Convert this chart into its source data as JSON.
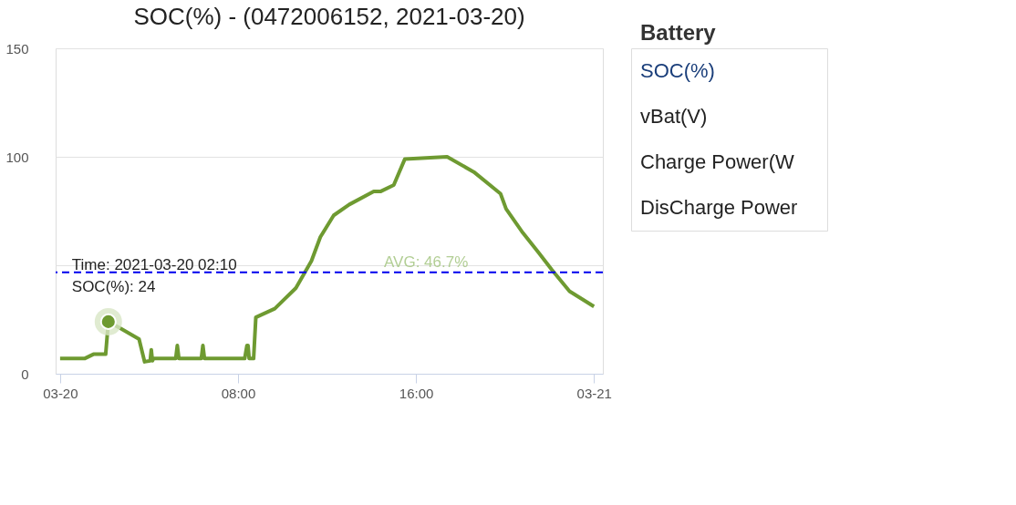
{
  "chart_data": [
    {
      "type": "line",
      "title": "SOC(%) - (0472006152, 2021-03-20)",
      "x": [
        0,
        1.1,
        1.5,
        2.05,
        2.17,
        2.7,
        3.55,
        3.8,
        4.05,
        4.1,
        4.15,
        4.2,
        5.2,
        5.27,
        5.34,
        6.35,
        6.42,
        6.49,
        8.3,
        8.4,
        8.45,
        8.5,
        8.7,
        8.8,
        9.65,
        10.6,
        11.3,
        11.7,
        12.3,
        13.0,
        14.1,
        14.4,
        15.0,
        15.5,
        17.4,
        18.6,
        19.8,
        20.05,
        20.8,
        21.5,
        22.1,
        22.9,
        24.0
      ],
      "series": [
        {
          "color": "#6e9a31",
          "values": [
            7,
            7,
            9,
            9,
            24,
            21,
            16,
            5.5,
            6,
            11,
            6,
            7,
            7,
            13,
            7,
            7,
            13,
            7,
            7,
            13,
            13,
            7,
            7,
            26,
            30,
            39.5,
            52,
            63,
            73,
            78,
            84,
            84,
            87,
            99,
            100,
            93,
            83,
            76,
            65,
            56,
            48,
            38,
            31
          ]
        }
      ],
      "xlim": [
        -0.2,
        24.4
      ],
      "xticks": [
        {
          "value": 0,
          "label": "03-20"
        },
        {
          "value": 8,
          "label": "08:00"
        },
        {
          "value": 16,
          "label": "16:00"
        },
        {
          "value": 24,
          "label": "03-21"
        }
      ],
      "ylim": [
        0,
        150
      ],
      "yticks": [
        0,
        {
          "value": 50,
          "label": null
        },
        100,
        150
      ],
      "grid": "y",
      "legend": false,
      "marker": "none",
      "line_style": "solid",
      "ref_lines": [
        {
          "axis": "y",
          "value": 46.7,
          "label": "AVG: 46.7%",
          "color": "#0000ee",
          "line_style": "dashed"
        }
      ],
      "annotations": [
        {
          "text": "Time: 2021-03-20 02:10\nSOC(%): 24",
          "x": 2.17,
          "y": 24
        }
      ]
    },
    {
      "type": "other",
      "title": "Battery",
      "annotations": [
        "SOC(%)",
        "vBat(V)",
        "Charge Power(W",
        "DisCharge Power"
      ]
    }
  ]
}
